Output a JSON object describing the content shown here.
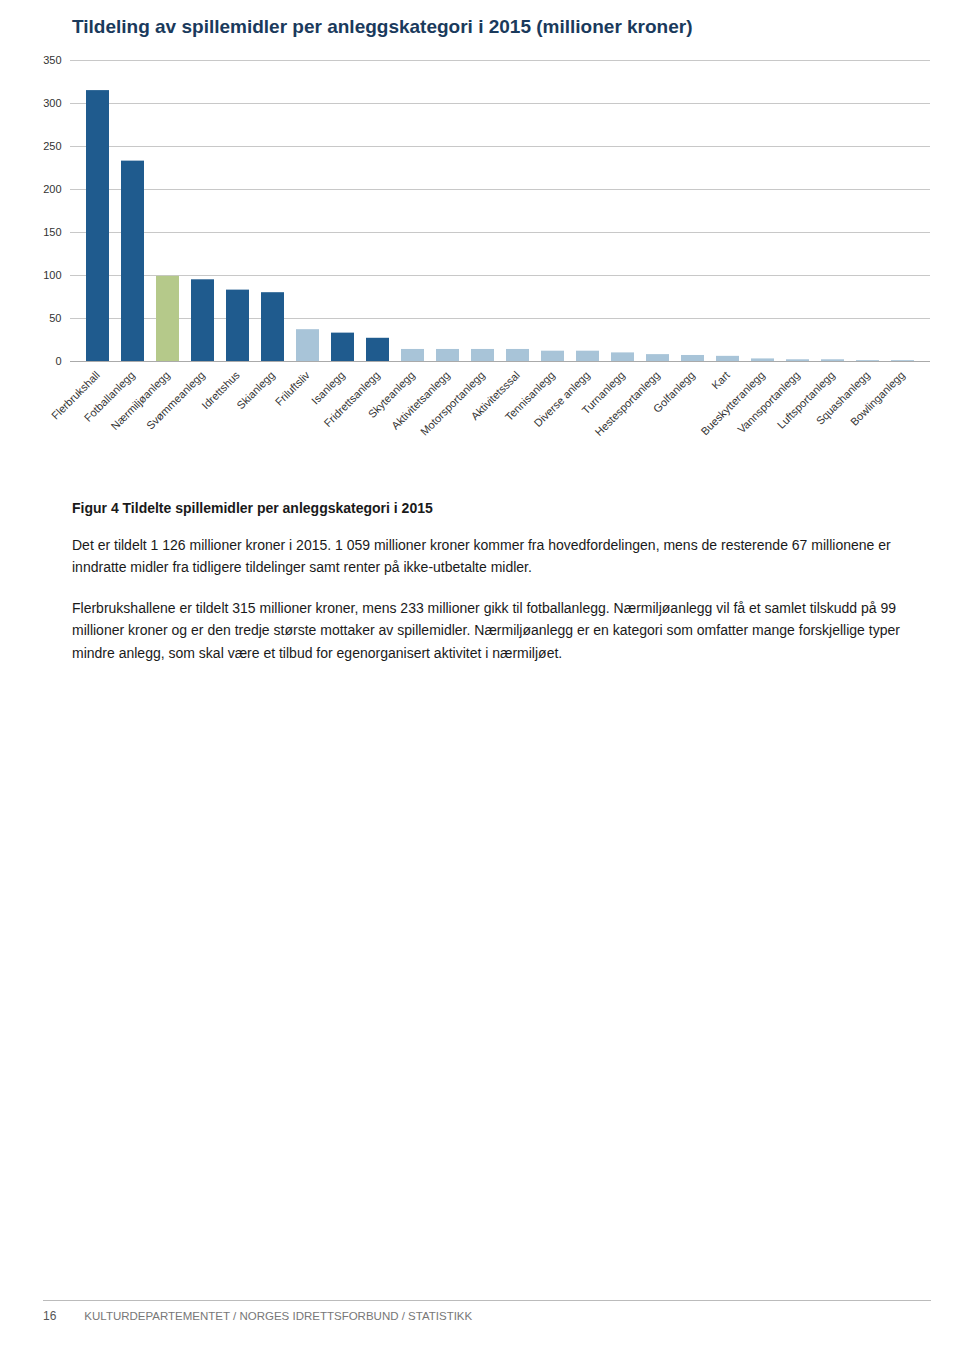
{
  "chart_data": {
    "type": "bar",
    "title": "Tildeling av spillemidler per anleggskategori i 2015 (millioner kroner)",
    "categories": [
      "Flerbrukshall",
      "Fotballanlegg",
      "Nærmiljøanlegg",
      "Svømmeanlegg",
      "Idrettshus",
      "Skianlegg",
      "Friluftsliv",
      "Isanlegg",
      "Fridrettsanlegg",
      "Skyteanlegg",
      "Aktivitetsanlegg",
      "Motorsportanlegg",
      "Aktivitetsssal",
      "Tennisanlegg",
      "Diverse anlegg",
      "Turnanlegg",
      "Hestesportanlegg",
      "Golfanlegg",
      "Kart",
      "Bueskytteranlegg",
      "Vannsportanlegg",
      "Luftsportanlegg",
      "Squashanlegg",
      "Bowlinganlegg"
    ],
    "values": [
      315,
      233,
      99,
      95,
      83,
      80,
      37,
      33,
      27,
      14,
      14,
      14,
      14,
      12,
      12,
      10,
      8,
      7,
      6,
      3,
      2,
      2,
      1,
      1
    ],
    "colors": [
      "#1f5b8e",
      "#1f5b8e",
      "#b5c98a",
      "#1f5b8e",
      "#1f5b8e",
      "#1f5b8e",
      "#a8c4d8",
      "#1f5b8e",
      "#1f5b8e",
      "#a8c4d8",
      "#a8c4d8",
      "#a8c4d8",
      "#a8c4d8",
      "#a8c4d8",
      "#a8c4d8",
      "#a8c4d8",
      "#a8c4d8",
      "#a8c4d8",
      "#a8c4d8",
      "#a8c4d8",
      "#a8c4d8",
      "#a8c4d8",
      "#a8c4d8",
      "#a8c4d8"
    ],
    "ylim": [
      0,
      350
    ],
    "yticks": [
      0,
      50,
      100,
      150,
      200,
      250,
      300,
      350
    ],
    "grid": true,
    "caption": "Figur 4 Tildelte spillemidler per anleggskategori i 2015",
    "annotations": [
      "Det er tildelt 1 126 millioner kroner i 2015. 1 059 millioner kroner kommer fra hovedfordelingen, mens de resterende 67 millionene er inndratte midler fra tidligere tildelinger samt renter på ikke-utbetalte midler.",
      "Flerbrukshallene er tildelt 315 millioner kroner, mens 233 millioner gikk til fotballanlegg. Nærmiljøanlegg vil få et samlet tilskudd på 99 millioner kroner og er den tredje største mottaker av spillemidler. Nærmiljøanlegg er en kategori som omfatter mange forskjellige typer mindre anlegg, som skal være et tilbud for egenorganisert aktivitet i nærmiljøet.",
      "16",
      "KULTURDEPARTEMENTET / NORGES IDRETTSFORBUND / STATISTIKK"
    ]
  }
}
